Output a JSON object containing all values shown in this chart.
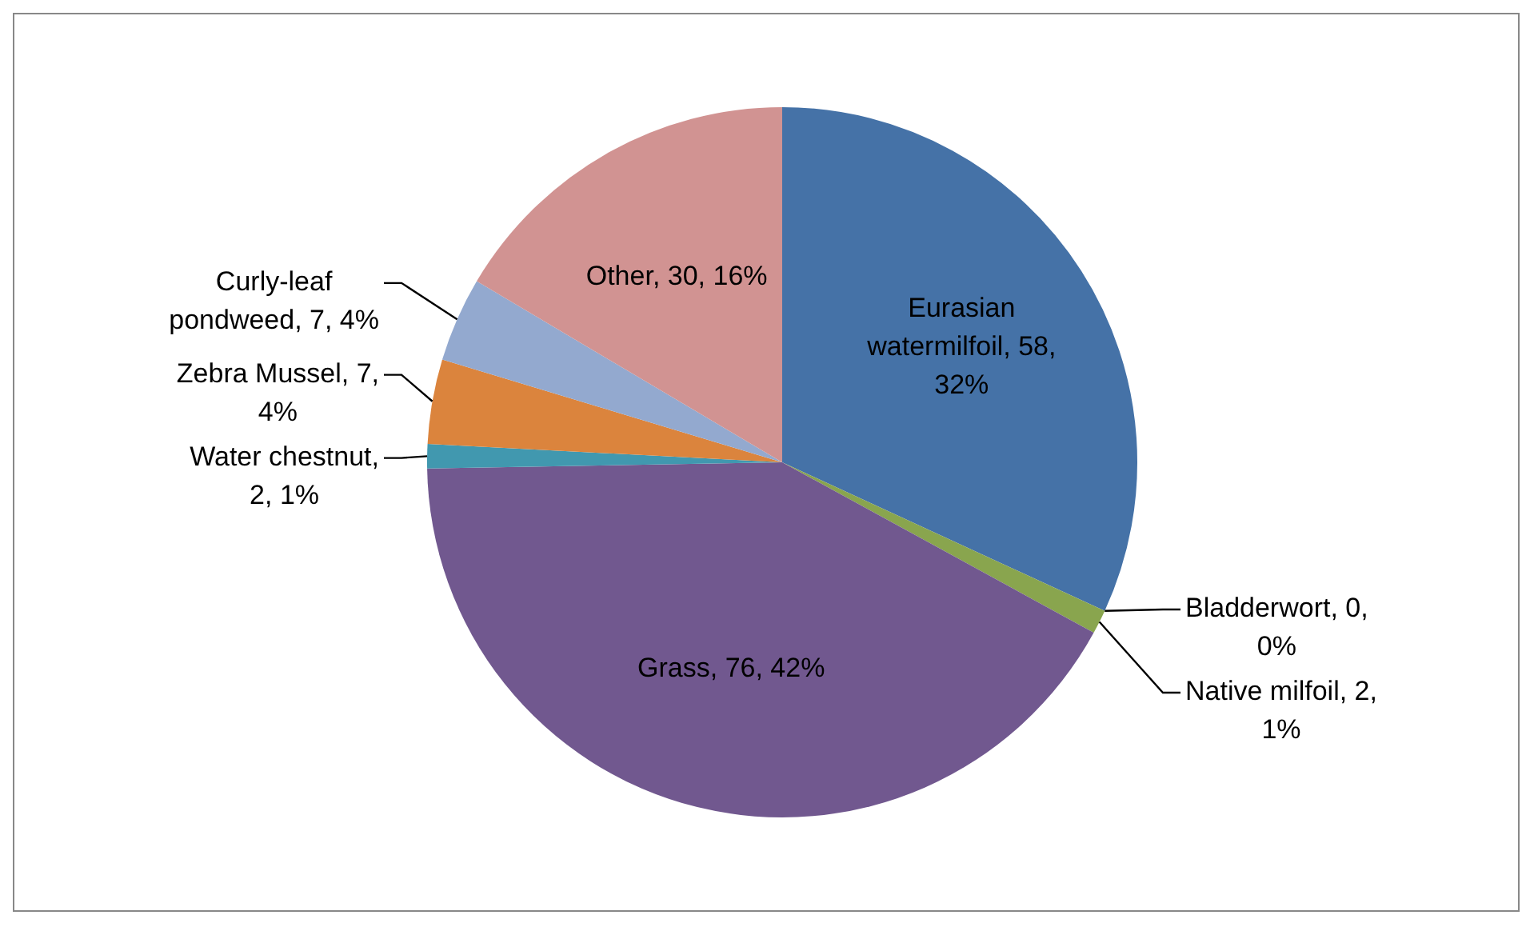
{
  "chart_data": {
    "type": "pie",
    "categories": [
      "Eurasian watermilfoil",
      "Bladderwort",
      "Native milfoil",
      "Grass",
      "Water chestnut",
      "Zebra Mussel",
      "Curly-leaf pondweed",
      "Other"
    ],
    "values": [
      58,
      0,
      2,
      76,
      2,
      7,
      7,
      30
    ],
    "value_labels": [
      ", 58, 32%",
      ", 0, 0%",
      ", 2, 1%",
      ", 76, 42%",
      ", 2, 1%",
      ", 7, 4%",
      ", 7, 4%",
      ", 30, 16%"
    ],
    "colors": [
      "#4572a7",
      "#aa4643",
      "#89a54e",
      "#71588f",
      "#4198af",
      "#db843d",
      "#93a9cf",
      "#d19392"
    ]
  }
}
